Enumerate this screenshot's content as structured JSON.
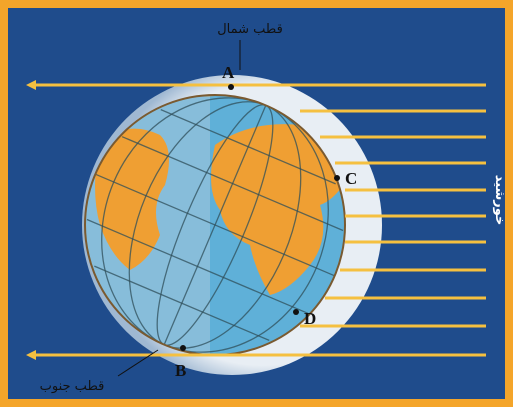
{
  "labels": {
    "north_pole": "قطب شمال",
    "a": "A",
    "c": "C",
    "sun": "خورشید",
    "d": "D",
    "b": "B",
    "south_pole": "قطب جنوب"
  }
}
